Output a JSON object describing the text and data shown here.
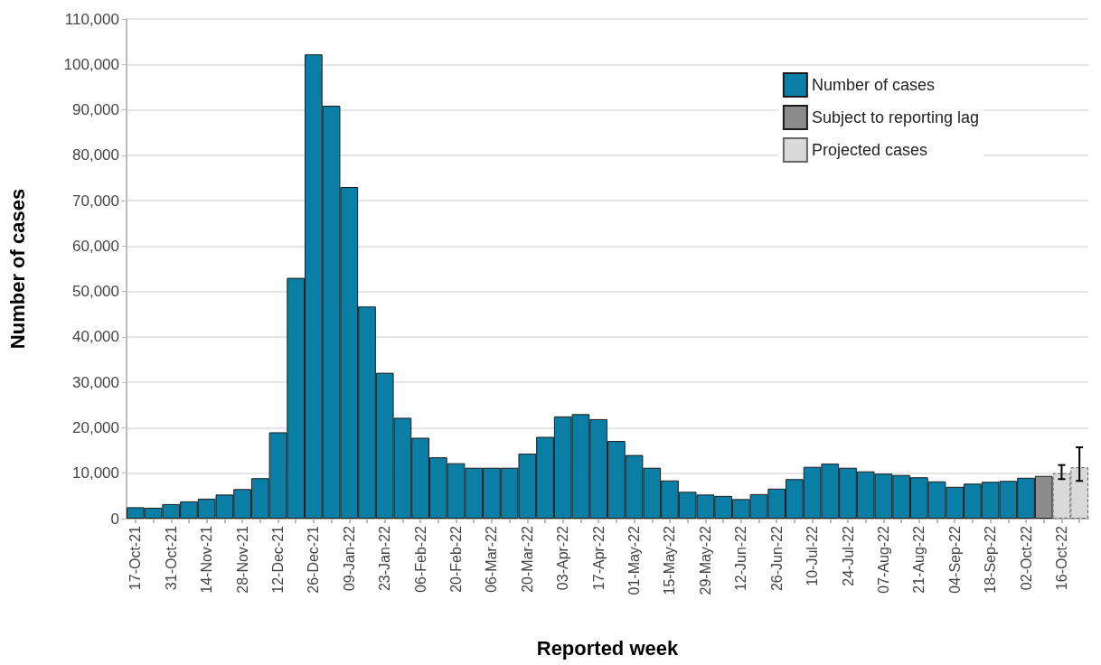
{
  "chart_data": {
    "type": "bar",
    "xlabel": "Reported week",
    "ylabel": "Number of cases",
    "categories": [
      "17-Oct-21",
      null,
      "31-Oct-21",
      null,
      "14-Nov-21",
      null,
      "28-Nov-21",
      null,
      "12-Dec-21",
      null,
      "26-Dec-21",
      null,
      "09-Jan-22",
      null,
      "23-Jan-22",
      null,
      "06-Feb-22",
      null,
      "20-Feb-22",
      null,
      "06-Mar-22",
      null,
      "20-Mar-22",
      null,
      "03-Apr-22",
      null,
      "17-Apr-22",
      null,
      "01-May-22",
      null,
      "15-May-22",
      null,
      "29-May-22",
      null,
      "12-Jun-22",
      null,
      "26-Jun-22",
      null,
      "10-Jul-22",
      null,
      "24-Jul-22",
      null,
      "07-Aug-22",
      null,
      "21-Aug-22",
      null,
      "04-Sep-22",
      null,
      "18-Sep-22",
      null,
      "02-Oct-22",
      null,
      "16-Oct-22",
      null
    ],
    "series": [
      {
        "name": "Number of cases",
        "color": "#0b7ea6",
        "values": [
          2500,
          2400,
          3200,
          3800,
          4400,
          5300,
          6500,
          8900,
          19000,
          53000,
          102200,
          90900,
          73000,
          46700,
          32100,
          22200,
          17800,
          13500,
          12200,
          11200,
          11200,
          11200,
          14300,
          18000,
          22500,
          23000,
          21900,
          17100,
          14000,
          11200,
          8400,
          5900,
          5300,
          5000,
          4300,
          5400,
          6600,
          8700,
          11400,
          12100,
          11200,
          10400,
          9900,
          9600,
          9100,
          8200,
          7000,
          7700,
          8100,
          8300,
          9000,
          null,
          null,
          null
        ]
      },
      {
        "name": "Subject to reporting lag",
        "color": "#8c8c8c",
        "values": [
          null,
          null,
          null,
          null,
          null,
          null,
          null,
          null,
          null,
          null,
          null,
          null,
          null,
          null,
          null,
          null,
          null,
          null,
          null,
          null,
          null,
          null,
          null,
          null,
          null,
          null,
          null,
          null,
          null,
          null,
          null,
          null,
          null,
          null,
          null,
          null,
          null,
          null,
          null,
          null,
          null,
          null,
          null,
          null,
          null,
          null,
          null,
          null,
          null,
          null,
          null,
          9400,
          null,
          null
        ]
      },
      {
        "name": "Projected cases",
        "color": "#d9d9d9",
        "values": [
          null,
          null,
          null,
          null,
          null,
          null,
          null,
          null,
          null,
          null,
          null,
          null,
          null,
          null,
          null,
          null,
          null,
          null,
          null,
          null,
          null,
          null,
          null,
          null,
          null,
          null,
          null,
          null,
          null,
          null,
          null,
          null,
          null,
          null,
          null,
          null,
          null,
          null,
          null,
          null,
          null,
          null,
          null,
          null,
          null,
          null,
          null,
          null,
          null,
          null,
          null,
          null,
          10000,
          11300
        ],
        "errors": [
          null,
          null,
          null,
          null,
          null,
          null,
          null,
          null,
          null,
          null,
          null,
          null,
          null,
          null,
          null,
          null,
          null,
          null,
          null,
          null,
          null,
          null,
          null,
          null,
          null,
          null,
          null,
          null,
          null,
          null,
          null,
          null,
          null,
          null,
          null,
          null,
          null,
          null,
          null,
          null,
          null,
          null,
          null,
          null,
          null,
          null,
          null,
          null,
          null,
          null,
          null,
          null,
          [
            8700,
            11800
          ],
          [
            8300,
            15700
          ]
        ]
      }
    ],
    "ylim": [
      0,
      110000
    ],
    "yticks": [
      0,
      {
        "value": 10000,
        "label": "10,000"
      },
      {
        "value": 20000,
        "label": "20,000"
      },
      {
        "value": 30000,
        "label": "30,000"
      },
      {
        "value": 40000,
        "label": "40,000"
      },
      {
        "value": 50000,
        "label": "50,000"
      },
      {
        "value": 60000,
        "label": "60,000"
      },
      {
        "value": 70000,
        "label": "70,000"
      },
      {
        "value": 80000,
        "label": "80,000"
      },
      {
        "value": 90000,
        "label": "90,000"
      },
      {
        "value": 100000,
        "label": "100,000"
      },
      {
        "value": 110000,
        "label": "110,000"
      }
    ],
    "grid": "y",
    "legend": "top right"
  }
}
